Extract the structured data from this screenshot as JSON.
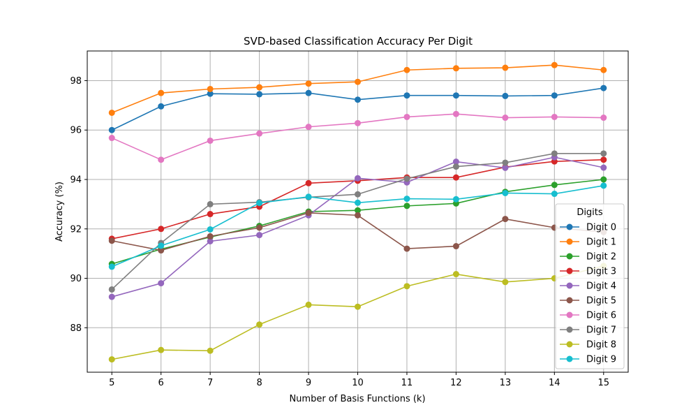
{
  "chart_data": {
    "type": "line",
    "title": "SVD-based Classification Accuracy Per Digit",
    "xlabel": "Number of Basis Functions (k)",
    "ylabel": "Accuracy (%)",
    "x": [
      5,
      6,
      7,
      8,
      9,
      10,
      11,
      12,
      13,
      14,
      15
    ],
    "xlim": [
      4.5,
      15.5
    ],
    "ylim": [
      86.2,
      99.2
    ],
    "yticks": [
      88,
      90,
      92,
      94,
      96,
      98
    ],
    "grid": true,
    "legend": {
      "title": "Digits",
      "placement": "center-right"
    },
    "series": [
      {
        "name": "Digit 0",
        "color": "#1f77b4",
        "values": [
          96.0,
          96.96,
          97.47,
          97.45,
          97.5,
          97.23,
          97.4,
          97.4,
          97.38,
          97.4,
          97.7
        ]
      },
      {
        "name": "Digit 1",
        "color": "#ff7f0e",
        "values": [
          96.7,
          97.5,
          97.66,
          97.73,
          97.88,
          97.95,
          98.43,
          98.5,
          98.52,
          98.63,
          98.43
        ]
      },
      {
        "name": "Digit 2",
        "color": "#2ca02c",
        "values": [
          90.58,
          91.18,
          91.67,
          92.12,
          92.7,
          92.75,
          92.93,
          93.03,
          93.5,
          93.78,
          94.0
        ]
      },
      {
        "name": "Digit 3",
        "color": "#d62728",
        "values": [
          91.6,
          92.0,
          92.6,
          92.9,
          93.85,
          93.95,
          94.08,
          94.08,
          94.5,
          94.73,
          94.8
        ]
      },
      {
        "name": "Digit 4",
        "color": "#9467bd",
        "values": [
          89.25,
          89.8,
          91.5,
          91.75,
          92.55,
          94.05,
          93.88,
          94.72,
          94.47,
          94.9,
          94.48
        ]
      },
      {
        "name": "Digit 5",
        "color": "#8c564b",
        "values": [
          91.52,
          91.13,
          91.7,
          92.05,
          92.65,
          92.55,
          91.2,
          91.3,
          92.4,
          92.05,
          91.87
        ]
      },
      {
        "name": "Digit 6",
        "color": "#e377c2",
        "values": [
          95.68,
          94.8,
          95.57,
          95.86,
          96.13,
          96.28,
          96.53,
          96.65,
          96.5,
          96.53,
          96.5
        ]
      },
      {
        "name": "Digit 7",
        "color": "#7f7f7f",
        "values": [
          89.55,
          91.43,
          93.0,
          93.08,
          93.28,
          93.4,
          94.03,
          94.52,
          94.68,
          95.05,
          95.05
        ]
      },
      {
        "name": "Digit 8",
        "color": "#bcbd22",
        "values": [
          86.72,
          87.1,
          87.07,
          88.13,
          88.93,
          88.85,
          89.68,
          90.17,
          89.85,
          90.0,
          90.5
        ]
      },
      {
        "name": "Digit 9",
        "color": "#17becf",
        "values": [
          90.47,
          91.32,
          91.98,
          93.05,
          93.3,
          93.06,
          93.22,
          93.2,
          93.45,
          93.42,
          93.75
        ]
      }
    ]
  }
}
